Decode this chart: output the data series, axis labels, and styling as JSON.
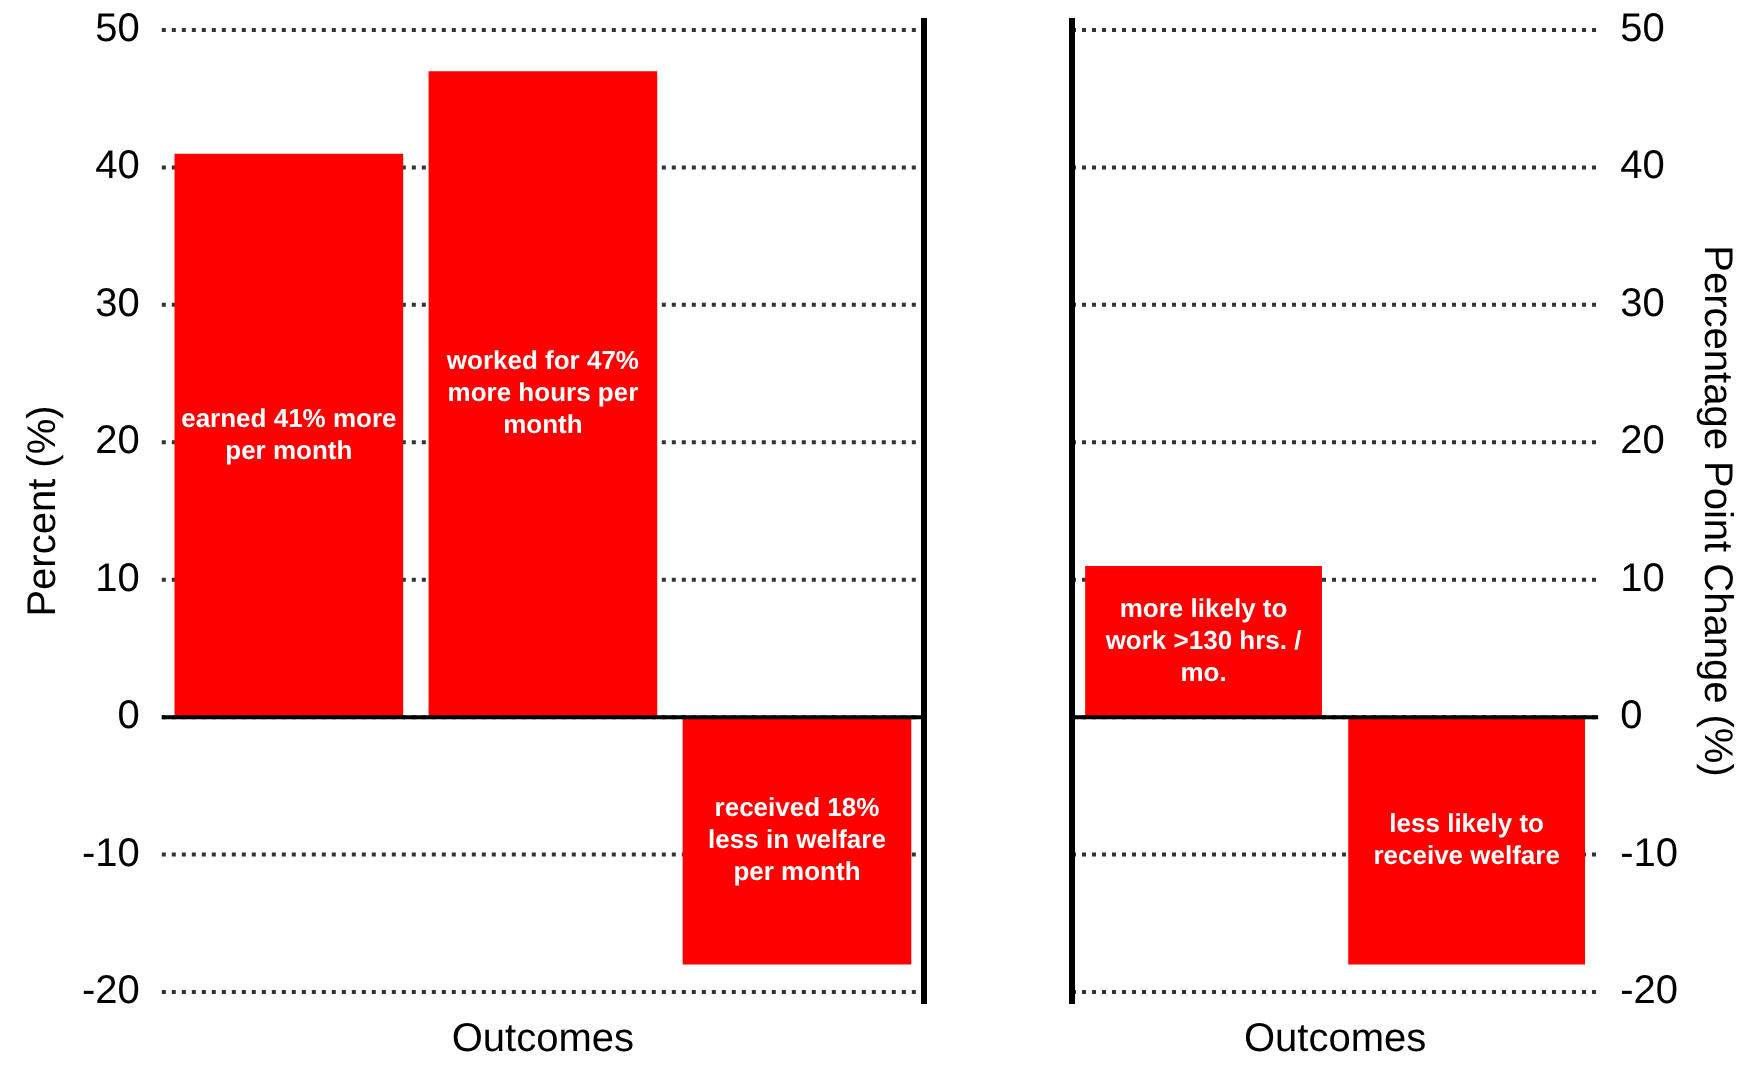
{
  "chart_data": [
    {
      "type": "bar",
      "categories": [
        null,
        null,
        null
      ],
      "series": [
        {
          "color": "#ff0000",
          "values": [
            41,
            47,
            -18
          ]
        }
      ],
      "xlabel": "Outcomes",
      "ylabel": "Percent (%)",
      "ylim": [
        -20,
        50
      ],
      "yticks": [
        -20,
        -10,
        0,
        10,
        20,
        30,
        40,
        50
      ],
      "grid": "y",
      "annotations": [
        "earned 41% more per month",
        "worked for 47% more hours per month",
        "received 18% less in welfare per month"
      ]
    },
    {
      "type": "bar",
      "categories": [
        null,
        null
      ],
      "series": [
        {
          "color": "#ff0000",
          "values": [
            11,
            -18
          ],
          "axis": "y2"
        }
      ],
      "xlabel": "Outcomes",
      "y2label": "Percentage Point Change (%)",
      "y2lim": [
        -20,
        50
      ],
      "y2ticks": [
        -20,
        -10,
        0,
        10,
        20,
        30,
        40,
        50
      ],
      "grid": "y",
      "annotations": [
        "more likely to work >130 hrs. / mo.",
        "less likely to receive welfare"
      ]
    }
  ]
}
